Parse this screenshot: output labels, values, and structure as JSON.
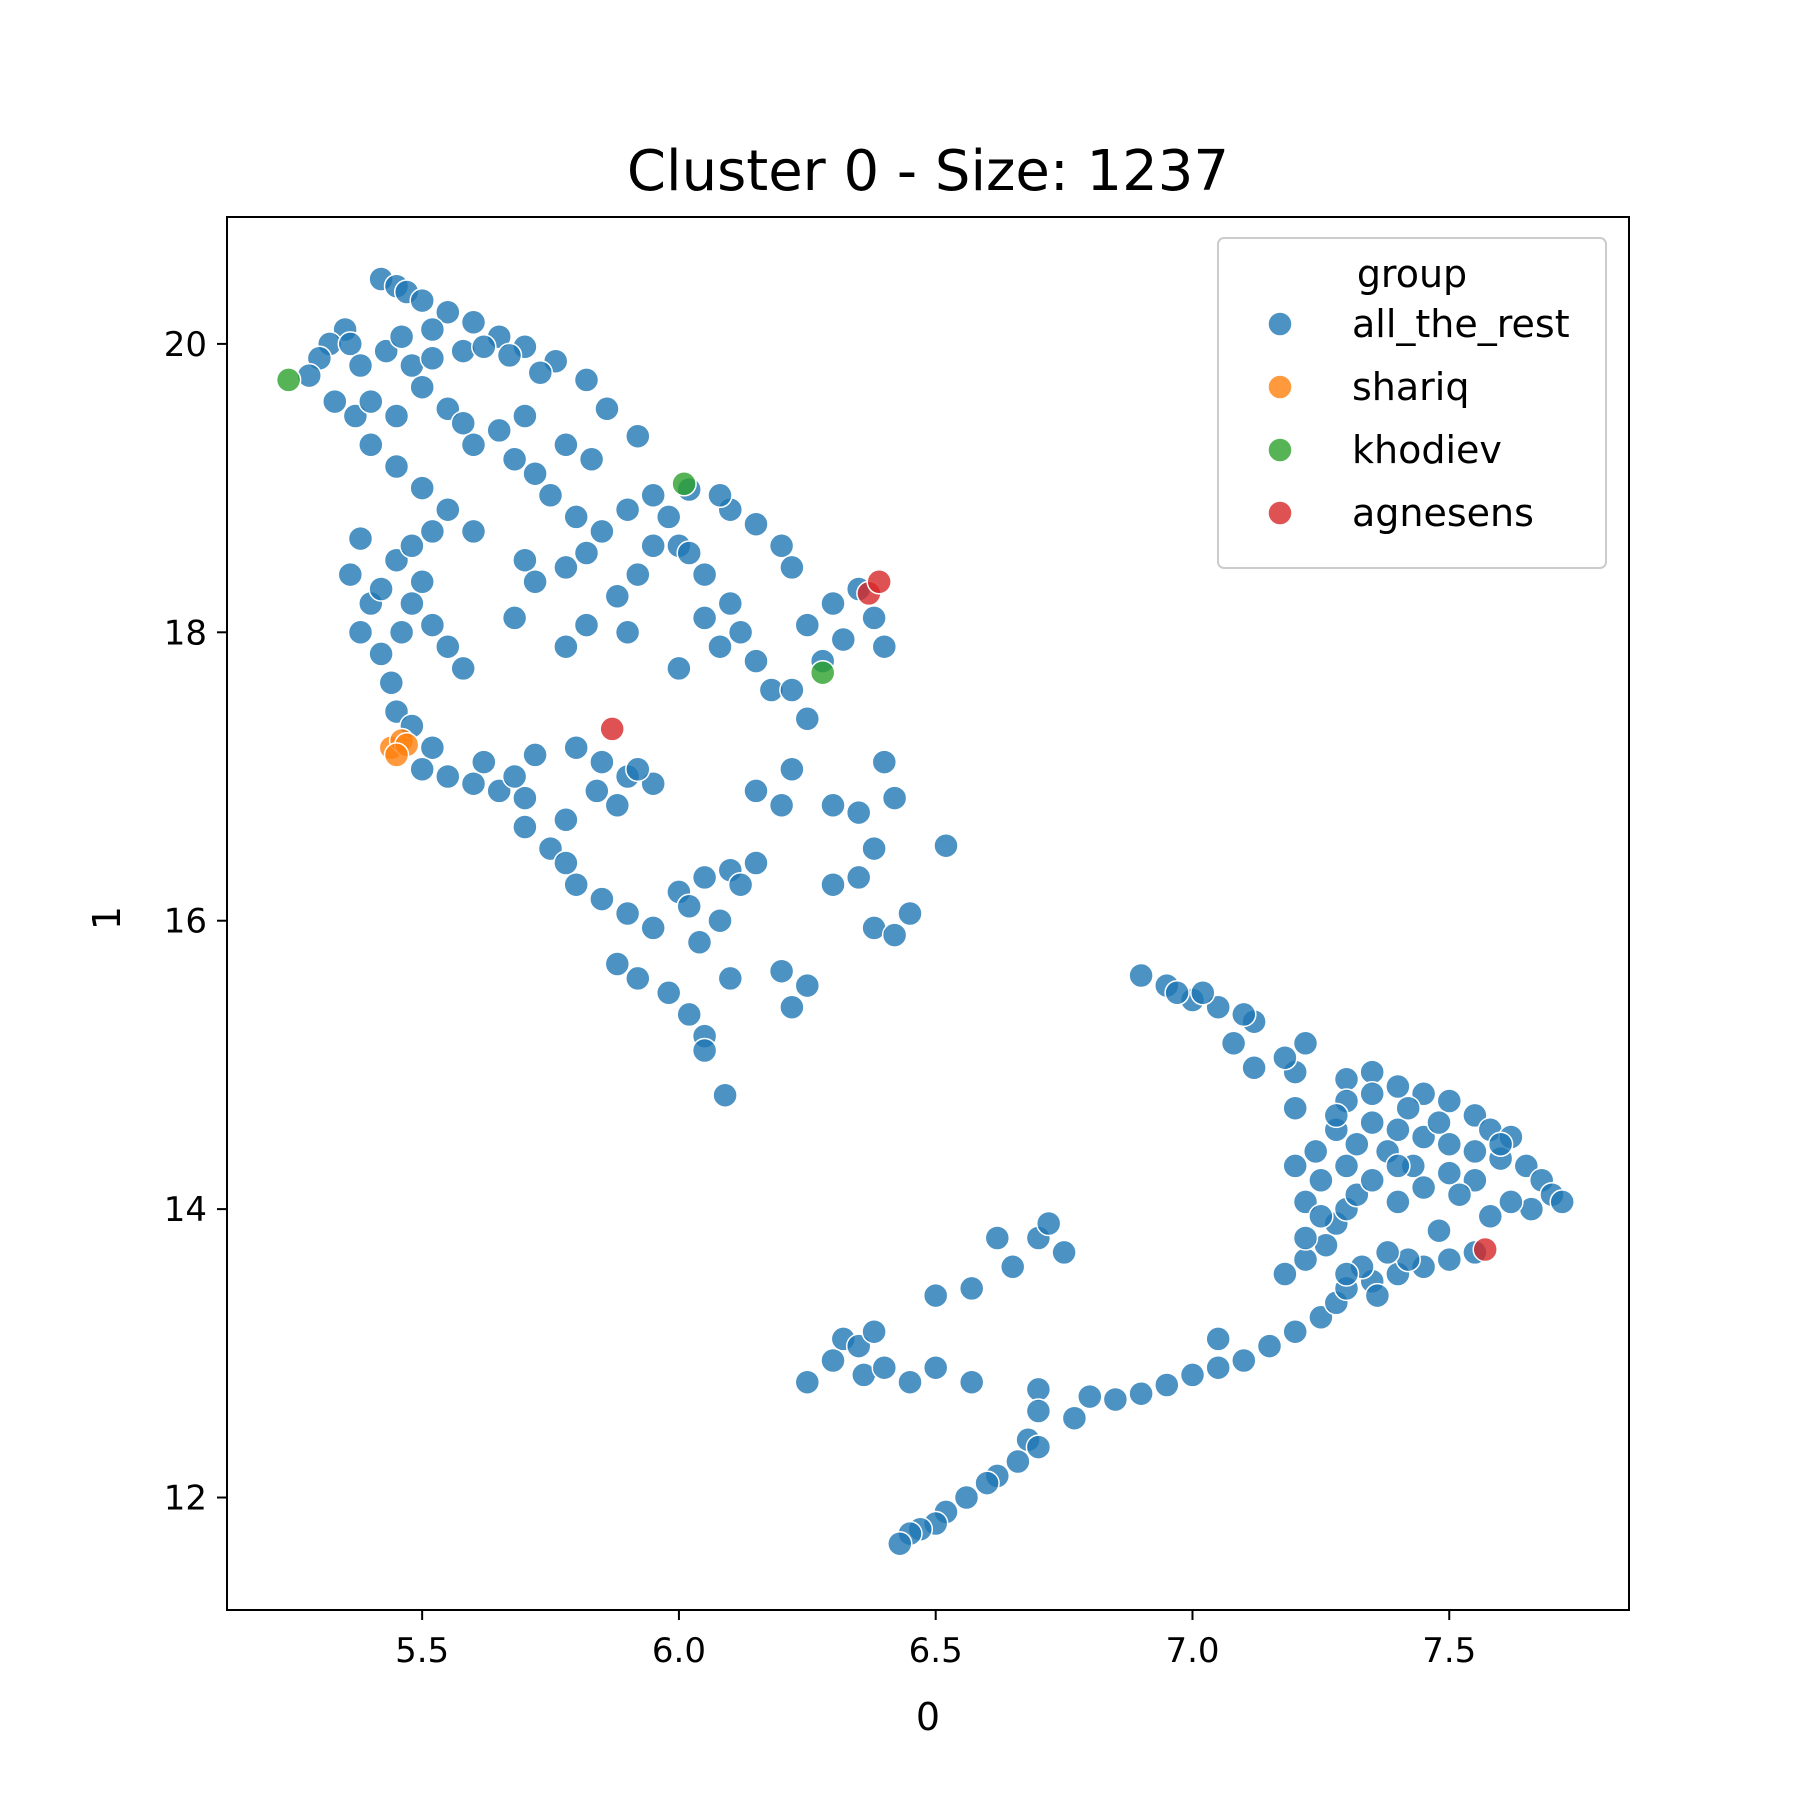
{
  "chart_data": {
    "type": "scatter",
    "title": "Cluster 0 - Size: 1237",
    "xlabel": "0",
    "ylabel": "1",
    "xlim": [
      5.12,
      7.85
    ],
    "ylim": [
      11.22,
      20.88
    ],
    "xticks": [
      5.5,
      6.0,
      6.5,
      7.0,
      7.5
    ],
    "xtick_labels": [
      "5.5",
      "6.0",
      "6.5",
      "7.0",
      "7.5"
    ],
    "yticks": [
      12,
      14,
      16,
      18,
      20
    ],
    "ytick_labels": [
      "12",
      "14",
      "16",
      "18",
      "20"
    ],
    "grid": false,
    "legend": {
      "title": "group",
      "placement": "top-right",
      "entries": [
        {
          "label": "all_the_rest",
          "color": "#1f77b4"
        },
        {
          "label": "shariq",
          "color": "#ff7f0e"
        },
        {
          "label": "khodiev",
          "color": "#2ca02c"
        },
        {
          "label": "agnesens",
          "color": "#d62728"
        }
      ]
    },
    "series": [
      {
        "name": "all_the_rest",
        "color": "#1f77b4",
        "points": [
          [
            5.42,
            20.45
          ],
          [
            5.45,
            20.4
          ],
          [
            5.47,
            20.36
          ],
          [
            5.5,
            20.3
          ],
          [
            5.55,
            20.22
          ],
          [
            5.6,
            20.15
          ],
          [
            5.65,
            20.05
          ],
          [
            5.7,
            19.98
          ],
          [
            5.76,
            19.88
          ],
          [
            5.82,
            19.75
          ],
          [
            5.86,
            19.55
          ],
          [
            5.92,
            19.36
          ],
          [
            5.35,
            20.1
          ],
          [
            5.32,
            20.0
          ],
          [
            5.3,
            19.9
          ],
          [
            5.28,
            19.78
          ],
          [
            5.33,
            19.6
          ],
          [
            5.37,
            19.5
          ],
          [
            5.4,
            19.3
          ],
          [
            5.45,
            19.15
          ],
          [
            5.5,
            19.0
          ],
          [
            5.55,
            18.85
          ],
          [
            5.6,
            18.7
          ],
          [
            5.38,
            18.65
          ],
          [
            5.36,
            18.4
          ],
          [
            5.4,
            18.2
          ],
          [
            5.38,
            18.0
          ],
          [
            5.42,
            17.85
          ],
          [
            5.44,
            17.65
          ],
          [
            5.45,
            17.45
          ],
          [
            5.48,
            17.35
          ],
          [
            5.52,
            17.2
          ],
          [
            5.5,
            17.05
          ],
          [
            5.55,
            17.0
          ],
          [
            5.6,
            16.95
          ],
          [
            5.65,
            16.9
          ],
          [
            5.7,
            16.85
          ],
          [
            5.62,
            17.1
          ],
          [
            5.68,
            17.0
          ],
          [
            5.72,
            17.15
          ],
          [
            5.7,
            16.65
          ],
          [
            5.75,
            16.5
          ],
          [
            5.78,
            16.4
          ],
          [
            5.8,
            16.25
          ],
          [
            5.85,
            16.15
          ],
          [
            5.9,
            16.05
          ],
          [
            5.95,
            15.95
          ],
          [
            5.88,
            15.7
          ],
          [
            5.92,
            15.6
          ],
          [
            5.98,
            15.5
          ],
          [
            6.02,
            15.35
          ],
          [
            6.05,
            15.2
          ],
          [
            6.05,
            15.1
          ],
          [
            6.09,
            14.79
          ],
          [
            5.8,
            17.2
          ],
          [
            5.85,
            17.1
          ],
          [
            5.9,
            17.0
          ],
          [
            5.95,
            16.95
          ],
          [
            5.84,
            16.9
          ],
          [
            5.88,
            16.8
          ],
          [
            5.92,
            17.05
          ],
          [
            5.78,
            16.7
          ],
          [
            6.0,
            16.2
          ],
          [
            6.05,
            16.3
          ],
          [
            6.1,
            16.35
          ],
          [
            6.15,
            16.4
          ],
          [
            6.02,
            16.1
          ],
          [
            6.08,
            16.0
          ],
          [
            6.04,
            15.85
          ],
          [
            6.12,
            16.25
          ],
          [
            6.0,
            18.6
          ],
          [
            6.05,
            18.4
          ],
          [
            6.1,
            18.2
          ],
          [
            6.12,
            18.0
          ],
          [
            6.15,
            17.8
          ],
          [
            6.18,
            17.6
          ],
          [
            6.08,
            17.9
          ],
          [
            6.05,
            18.1
          ],
          [
            6.0,
            17.75
          ],
          [
            6.1,
            18.85
          ],
          [
            6.15,
            18.75
          ],
          [
            6.2,
            18.6
          ],
          [
            6.22,
            18.45
          ],
          [
            6.08,
            18.95
          ],
          [
            6.02,
            18.99
          ],
          [
            5.95,
            18.95
          ],
          [
            5.9,
            18.85
          ],
          [
            6.25,
            18.05
          ],
          [
            6.3,
            18.2
          ],
          [
            6.35,
            18.3
          ],
          [
            6.38,
            18.1
          ],
          [
            6.4,
            17.9
          ],
          [
            6.32,
            17.95
          ],
          [
            6.28,
            17.8
          ],
          [
            6.22,
            17.6
          ],
          [
            6.25,
            17.4
          ],
          [
            6.3,
            16.8
          ],
          [
            6.35,
            16.75
          ],
          [
            6.4,
            17.1
          ],
          [
            6.42,
            16.85
          ],
          [
            6.38,
            16.5
          ],
          [
            6.35,
            16.3
          ],
          [
            6.3,
            16.25
          ],
          [
            6.38,
            15.95
          ],
          [
            6.42,
            15.9
          ],
          [
            6.45,
            16.05
          ],
          [
            6.52,
            16.52
          ],
          [
            6.2,
            16.8
          ],
          [
            6.15,
            16.9
          ],
          [
            6.22,
            17.05
          ],
          [
            6.1,
            15.6
          ],
          [
            6.2,
            15.65
          ],
          [
            6.22,
            15.4
          ],
          [
            6.25,
            15.55
          ],
          [
            5.65,
            19.4
          ],
          [
            5.6,
            19.3
          ],
          [
            5.68,
            19.2
          ],
          [
            5.72,
            19.1
          ],
          [
            5.75,
            18.95
          ],
          [
            5.8,
            18.8
          ],
          [
            5.78,
            19.3
          ],
          [
            5.83,
            19.2
          ],
          [
            5.7,
            19.5
          ],
          [
            5.5,
            19.7
          ],
          [
            5.55,
            19.55
          ],
          [
            5.58,
            19.45
          ],
          [
            5.45,
            19.5
          ],
          [
            5.4,
            19.6
          ],
          [
            5.48,
            19.85
          ],
          [
            5.52,
            19.9
          ],
          [
            5.58,
            19.95
          ],
          [
            5.45,
            18.5
          ],
          [
            5.5,
            18.35
          ],
          [
            5.48,
            18.2
          ],
          [
            5.52,
            18.05
          ],
          [
            5.55,
            17.9
          ],
          [
            5.58,
            17.75
          ],
          [
            5.46,
            18.0
          ],
          [
            5.42,
            18.3
          ],
          [
            5.48,
            18.6
          ],
          [
            5.52,
            18.7
          ],
          [
            5.7,
            18.5
          ],
          [
            5.72,
            18.35
          ],
          [
            5.78,
            18.45
          ],
          [
            5.82,
            18.55
          ],
          [
            5.68,
            18.1
          ],
          [
            5.78,
            17.9
          ],
          [
            5.82,
            18.05
          ],
          [
            5.9,
            18.0
          ],
          [
            5.88,
            18.25
          ],
          [
            5.95,
            18.6
          ],
          [
            5.92,
            18.4
          ],
          [
            5.98,
            18.8
          ],
          [
            5.85,
            18.7
          ],
          [
            6.02,
            18.55
          ],
          [
            6.7,
            13.8
          ],
          [
            6.75,
            13.7
          ],
          [
            6.72,
            13.9
          ],
          [
            6.62,
            13.8
          ],
          [
            6.65,
            13.6
          ],
          [
            6.57,
            13.45
          ],
          [
            6.5,
            13.4
          ],
          [
            6.32,
            13.1
          ],
          [
            6.35,
            13.05
          ],
          [
            6.38,
            13.15
          ],
          [
            6.3,
            12.95
          ],
          [
            6.36,
            12.85
          ],
          [
            6.4,
            12.9
          ],
          [
            6.25,
            12.8
          ],
          [
            6.45,
            12.8
          ],
          [
            6.5,
            12.9
          ],
          [
            6.57,
            12.8
          ],
          [
            6.7,
            12.75
          ],
          [
            6.7,
            12.6
          ],
          [
            6.68,
            12.4
          ],
          [
            6.7,
            12.35
          ],
          [
            6.66,
            12.25
          ],
          [
            6.62,
            12.15
          ],
          [
            6.6,
            12.1
          ],
          [
            6.56,
            12.0
          ],
          [
            6.52,
            11.9
          ],
          [
            6.5,
            11.82
          ],
          [
            6.47,
            11.78
          ],
          [
            6.45,
            11.75
          ],
          [
            6.43,
            11.68
          ],
          [
            6.77,
            12.55
          ],
          [
            6.8,
            12.7
          ],
          [
            6.85,
            12.68
          ],
          [
            6.9,
            12.72
          ],
          [
            6.95,
            12.78
          ],
          [
            7.0,
            12.85
          ],
          [
            7.05,
            12.9
          ],
          [
            7.1,
            12.95
          ],
          [
            7.15,
            13.05
          ],
          [
            7.2,
            13.15
          ],
          [
            7.25,
            13.25
          ],
          [
            7.28,
            13.35
          ],
          [
            7.3,
            13.45
          ],
          [
            7.05,
            13.1
          ],
          [
            7.18,
            13.55
          ],
          [
            7.22,
            13.65
          ],
          [
            7.26,
            13.75
          ],
          [
            7.28,
            13.9
          ],
          [
            7.3,
            14.0
          ],
          [
            7.32,
            14.1
          ],
          [
            7.25,
            14.2
          ],
          [
            7.22,
            14.05
          ],
          [
            7.2,
            14.3
          ],
          [
            7.24,
            14.4
          ],
          [
            7.28,
            14.55
          ],
          [
            7.35,
            14.6
          ],
          [
            7.4,
            14.55
          ],
          [
            7.45,
            14.5
          ],
          [
            7.5,
            14.45
          ],
          [
            7.55,
            14.4
          ],
          [
            7.6,
            14.35
          ],
          [
            7.65,
            14.3
          ],
          [
            7.68,
            14.2
          ],
          [
            7.7,
            14.1
          ],
          [
            7.72,
            14.05
          ],
          [
            7.66,
            14.0
          ],
          [
            7.62,
            14.05
          ],
          [
            7.58,
            13.95
          ],
          [
            7.3,
            14.9
          ],
          [
            7.35,
            14.95
          ],
          [
            7.4,
            14.85
          ],
          [
            7.45,
            14.8
          ],
          [
            7.5,
            14.75
          ],
          [
            7.55,
            14.65
          ],
          [
            7.42,
            14.7
          ],
          [
            7.48,
            14.6
          ],
          [
            7.38,
            14.4
          ],
          [
            7.43,
            14.3
          ],
          [
            7.5,
            14.25
          ],
          [
            7.55,
            14.2
          ],
          [
            7.35,
            14.2
          ],
          [
            7.4,
            14.05
          ],
          [
            7.3,
            14.3
          ],
          [
            7.45,
            14.15
          ],
          [
            7.52,
            14.1
          ],
          [
            7.58,
            14.55
          ],
          [
            7.62,
            14.5
          ],
          [
            7.6,
            14.45
          ],
          [
            7.35,
            13.5
          ],
          [
            7.4,
            13.55
          ],
          [
            7.45,
            13.6
          ],
          [
            7.5,
            13.65
          ],
          [
            7.55,
            13.7
          ],
          [
            7.48,
            13.85
          ],
          [
            7.42,
            13.65
          ],
          [
            7.38,
            13.7
          ],
          [
            7.33,
            13.6
          ],
          [
            7.3,
            13.55
          ],
          [
            7.36,
            13.4
          ],
          [
            7.2,
            14.7
          ],
          [
            7.2,
            14.95
          ],
          [
            7.18,
            15.05
          ],
          [
            7.22,
            15.15
          ],
          [
            7.12,
            14.98
          ],
          [
            7.08,
            15.15
          ],
          [
            7.12,
            15.3
          ],
          [
            7.1,
            15.35
          ],
          [
            7.05,
            15.4
          ],
          [
            7.0,
            15.45
          ],
          [
            6.95,
            15.55
          ],
          [
            6.9,
            15.62
          ],
          [
            6.97,
            15.5
          ],
          [
            7.02,
            15.5
          ],
          [
            7.3,
            14.75
          ],
          [
            7.35,
            14.8
          ],
          [
            7.28,
            14.65
          ],
          [
            7.4,
            14.3
          ],
          [
            7.32,
            14.45
          ],
          [
            7.25,
            13.95
          ],
          [
            7.22,
            13.8
          ],
          [
            5.36,
            20.0
          ],
          [
            5.38,
            19.85
          ],
          [
            5.43,
            19.95
          ],
          [
            5.46,
            20.05
          ],
          [
            5.52,
            20.1
          ],
          [
            5.62,
            19.98
          ],
          [
            5.67,
            19.92
          ],
          [
            5.73,
            19.8
          ]
        ]
      },
      {
        "name": "shariq",
        "color": "#ff7f0e",
        "points": [
          [
            5.44,
            17.2
          ],
          [
            5.46,
            17.25
          ],
          [
            5.47,
            17.22
          ],
          [
            5.45,
            17.15
          ]
        ]
      },
      {
        "name": "khodiev",
        "color": "#2ca02c",
        "points": [
          [
            5.24,
            19.75
          ],
          [
            6.01,
            19.03
          ],
          [
            6.28,
            17.72
          ]
        ]
      },
      {
        "name": "agnesens",
        "color": "#d62728",
        "points": [
          [
            5.87,
            17.33
          ],
          [
            6.37,
            18.27
          ],
          [
            6.39,
            18.35
          ],
          [
            7.57,
            13.72
          ]
        ]
      }
    ]
  }
}
